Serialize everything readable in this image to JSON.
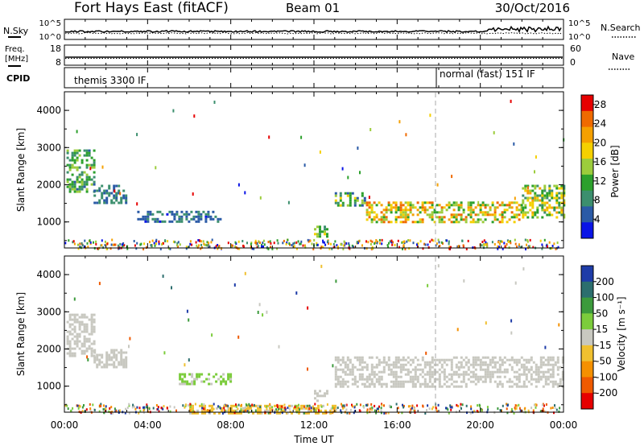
{
  "header": {
    "title": "Fort Hays East (fitACF)",
    "beam": "Beam 01",
    "date": "30/Oct/2016"
  },
  "top_panels": {
    "nsky_label": "N.Sky",
    "nsky_ticks": [
      "10^5",
      "10^0"
    ],
    "nsearch_label": "N.Search",
    "nsearch_ticks": [
      "10^5",
      "10^0"
    ],
    "freq_label_1": "Freq.",
    "freq_label_2": "[MHz]",
    "freq_ticks": [
      "18",
      "8"
    ],
    "nave_label": "Nave",
    "nave_ticks": [
      "60",
      "0"
    ],
    "cpid_label": "CPID",
    "cpid_modes": [
      {
        "label": "themis 3300 IF",
        "start_hour": 0
      },
      {
        "label": "normal (fast) 151 IF",
        "start_hour": 18
      }
    ]
  },
  "colors": {
    "power_scale": [
      "#0a14e6",
      "#2a5aa6",
      "#3c8f6e",
      "#2ca02c",
      "#9ccc3c",
      "#f5d000",
      "#f5a000",
      "#ef6a00",
      "#e60000"
    ],
    "velocity_scale": [
      "#1e3ca8",
      "#2c6e6e",
      "#3c9a3c",
      "#7ccc3c",
      "#c8c8c0",
      "#f0c030",
      "#f59000",
      "#ef5a00",
      "#e60000"
    ]
  },
  "chart_data": [
    {
      "type": "heatmap",
      "panel": "power",
      "xlabel": "Time UT",
      "ylabel": "Slant Range [km]",
      "xlim": [
        0,
        24
      ],
      "ylim": [
        300,
        4500
      ],
      "yticks": [
        1000,
        2000,
        3000,
        4000
      ],
      "xtick_labels": [
        "00:00",
        "04:00",
        "08:00",
        "12:00",
        "16:00",
        "20:00",
        "00:00"
      ],
      "colorbar": {
        "label": "Power [dB]",
        "ticks": [
          4,
          8,
          12,
          16,
          20,
          24,
          28
        ],
        "range": [
          0,
          30
        ]
      },
      "regions": [
        {
          "t0": 0.1,
          "t1": 1.4,
          "r0": 1800,
          "r1": 2950,
          "v0": 6,
          "v1": 16
        },
        {
          "t0": 1.4,
          "t1": 3.0,
          "r0": 1500,
          "r1": 2000,
          "v0": 4,
          "v1": 10
        },
        {
          "t0": 3.5,
          "t1": 7.5,
          "r0": 1000,
          "r1": 1300,
          "v0": 3,
          "v1": 9
        },
        {
          "t0": 12.0,
          "t1": 12.6,
          "r0": 600,
          "r1": 900,
          "v0": 8,
          "v1": 18
        },
        {
          "t0": 13.0,
          "t1": 14.5,
          "r0": 1450,
          "r1": 1800,
          "v0": 6,
          "v1": 18
        },
        {
          "t0": 14.5,
          "t1": 22.0,
          "r0": 1000,
          "r1": 1550,
          "v0": 10,
          "v1": 26
        },
        {
          "t0": 22.0,
          "t1": 24.0,
          "r0": 1100,
          "r1": 2000,
          "v0": 8,
          "v1": 22
        }
      ]
    },
    {
      "type": "heatmap",
      "panel": "velocity",
      "xlabel": "Time UT",
      "ylabel": "Slant Range [km]",
      "xlim": [
        0,
        24
      ],
      "ylim": [
        300,
        4500
      ],
      "yticks": [
        1000,
        2000,
        3000,
        4000
      ],
      "xtick_labels": [
        "00:00",
        "04:00",
        "08:00",
        "12:00",
        "16:00",
        "20:00",
        "00:00"
      ],
      "colorbar": {
        "label": "Velocity [m s⁻¹]",
        "ticks": [
          "200",
          "100",
          "50",
          "15",
          "-15",
          "-50",
          "-100",
          "-200"
        ],
        "range": [
          -250,
          250
        ]
      },
      "regions": [
        {
          "t0": 0.1,
          "t1": 1.4,
          "r0": 1800,
          "r1": 2950,
          "v0": -10,
          "v1": 12
        },
        {
          "t0": 1.4,
          "t1": 3.0,
          "r0": 1500,
          "r1": 2000,
          "v0": -10,
          "v1": 10
        },
        {
          "t0": 5.5,
          "t1": 8.0,
          "r0": 1050,
          "r1": 1350,
          "v0": 20,
          "v1": 45
        },
        {
          "t0": 12.0,
          "t1": 12.6,
          "r0": 600,
          "r1": 900,
          "v0": -10,
          "v1": 10
        },
        {
          "t0": 13.0,
          "t1": 24.0,
          "r0": 1000,
          "r1": 1800,
          "v0": -12,
          "v1": 12
        },
        {
          "t0": 6.0,
          "t1": 13.0,
          "r0": 300,
          "r1": 500,
          "v0": -60,
          "v1": -20
        }
      ]
    }
  ]
}
